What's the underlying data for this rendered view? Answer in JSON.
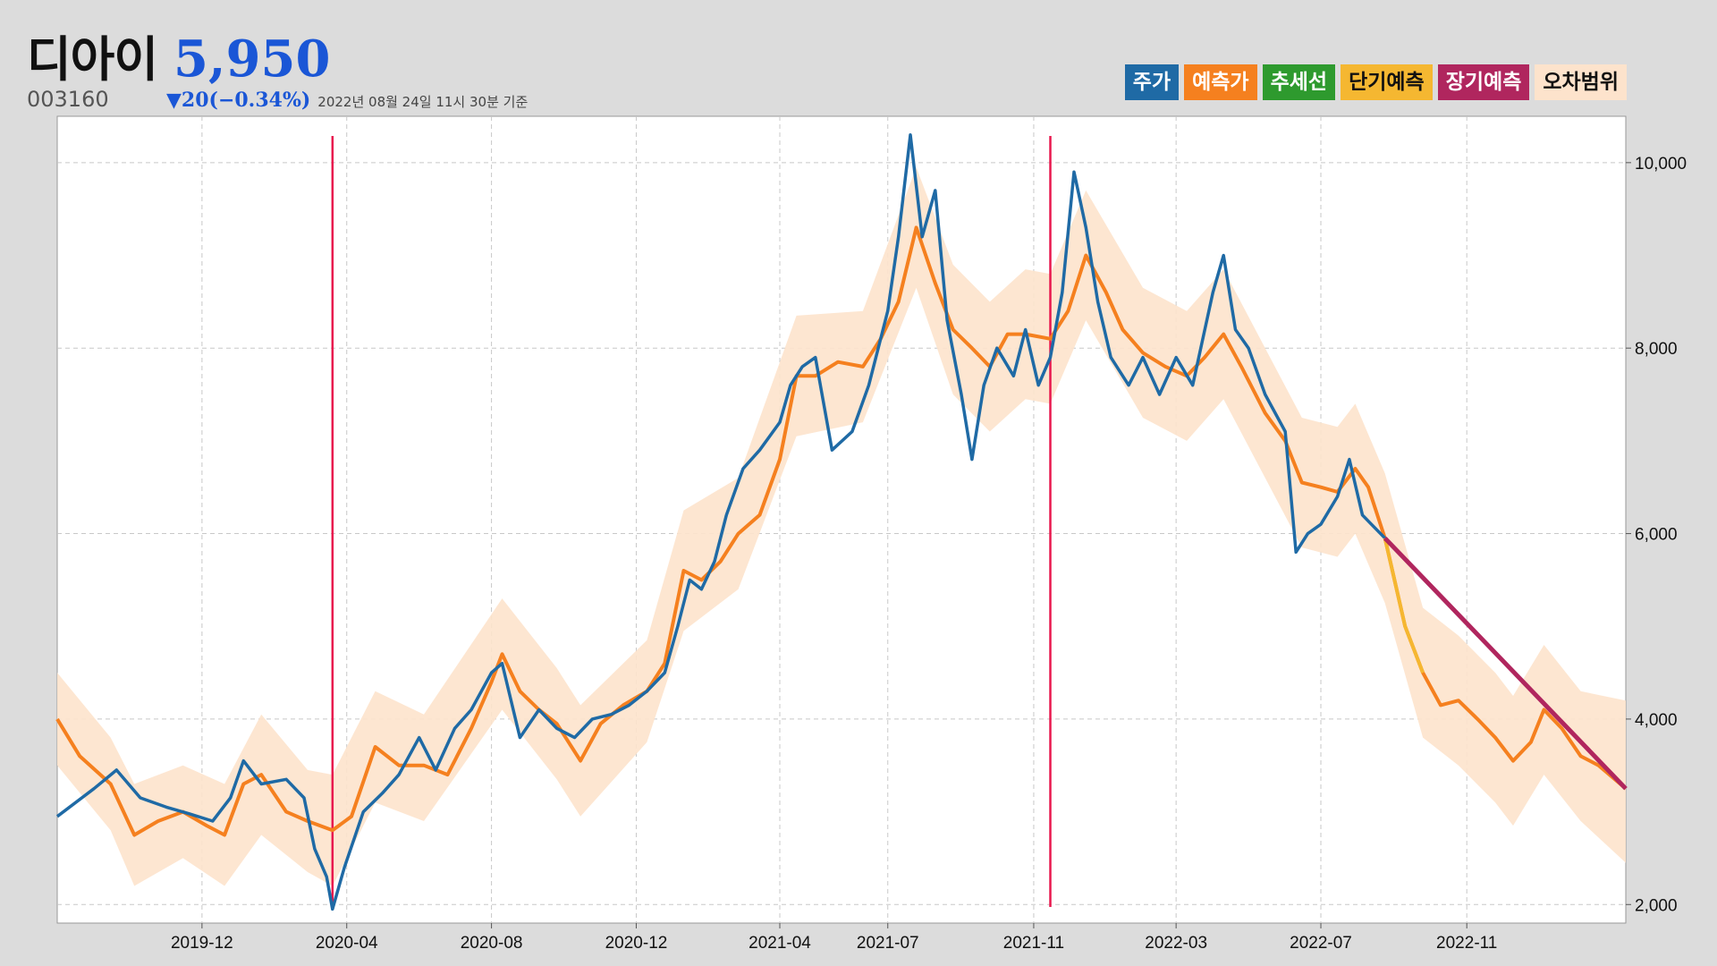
{
  "header": {
    "stock_name": "디아이",
    "price": "5,950",
    "code": "003160",
    "change": "▼20(−0.34%)",
    "timestamp": "2022년 08월 24일 11시 30분 기준"
  },
  "legend": [
    {
      "label": "주가",
      "bg": "#1f6aa5",
      "fg": "#ffffff"
    },
    {
      "label": "예측가",
      "bg": "#f5801f",
      "fg": "#ffffff"
    },
    {
      "label": "추세선",
      "bg": "#2e9a2e",
      "fg": "#ffffff"
    },
    {
      "label": "단기예측",
      "bg": "#f5b731",
      "fg": "#111111"
    },
    {
      "label": "장기예측",
      "bg": "#b0265e",
      "fg": "#ffffff"
    },
    {
      "label": "오차범위",
      "bg": "#fde3cc",
      "fg": "#111111"
    }
  ],
  "chart_data": {
    "type": "line",
    "x_ticks": [
      "2019-12",
      "2020-04",
      "2020-08",
      "2020-12",
      "2021-04",
      "2021-07",
      "2021-11",
      "2022-03",
      "2022-07",
      "2022-11"
    ],
    "y_ticks": [
      "2,000",
      "4,000",
      "6,000",
      "8,000",
      "10,000"
    ],
    "ylim": [
      1800,
      10500
    ],
    "xlim": [
      "2019-08-01",
      "2023-03-15"
    ],
    "grid": true,
    "colors": {
      "price": "#1f6aa5",
      "predicted": "#f5801f",
      "short_term": "#f5b731",
      "long_term": "#b0265e",
      "error_band": "#fde3cc",
      "markers": "#e8174e"
    },
    "markers": [
      "2020-03-20",
      "2021-11-15"
    ],
    "series": [
      {
        "name": "주가",
        "points": [
          [
            "2019-08-01",
            2950
          ],
          [
            "2019-09-01",
            3250
          ],
          [
            "2019-09-20",
            3450
          ],
          [
            "2019-10-10",
            3150
          ],
          [
            "2019-11-01",
            3050
          ],
          [
            "2019-11-20",
            2980
          ],
          [
            "2019-12-10",
            2900
          ],
          [
            "2019-12-25",
            3150
          ],
          [
            "2020-01-05",
            3550
          ],
          [
            "2020-01-20",
            3300
          ],
          [
            "2020-02-10",
            3350
          ],
          [
            "2020-02-25",
            3150
          ],
          [
            "2020-03-05",
            2600
          ],
          [
            "2020-03-15",
            2300
          ],
          [
            "2020-03-20",
            1950
          ],
          [
            "2020-03-30",
            2400
          ],
          [
            "2020-04-15",
            3000
          ],
          [
            "2020-05-01",
            3200
          ],
          [
            "2020-05-15",
            3400
          ],
          [
            "2020-06-01",
            3800
          ],
          [
            "2020-06-15",
            3450
          ],
          [
            "2020-07-01",
            3900
          ],
          [
            "2020-07-15",
            4100
          ],
          [
            "2020-08-01",
            4500
          ],
          [
            "2020-08-10",
            4600
          ],
          [
            "2020-08-25",
            3800
          ],
          [
            "2020-09-10",
            4100
          ],
          [
            "2020-09-25",
            3900
          ],
          [
            "2020-10-10",
            3800
          ],
          [
            "2020-10-25",
            4000
          ],
          [
            "2020-11-10",
            4050
          ],
          [
            "2020-11-25",
            4150
          ],
          [
            "2020-12-10",
            4300
          ],
          [
            "2020-12-25",
            4500
          ],
          [
            "2021-01-05",
            5000
          ],
          [
            "2021-01-15",
            5500
          ],
          [
            "2021-01-25",
            5400
          ],
          [
            "2021-02-05",
            5700
          ],
          [
            "2021-02-15",
            6200
          ],
          [
            "2021-03-01",
            6700
          ],
          [
            "2021-03-15",
            6900
          ],
          [
            "2021-04-01",
            7200
          ],
          [
            "2021-04-10",
            7600
          ],
          [
            "2021-04-20",
            7800
          ],
          [
            "2021-05-01",
            7900
          ],
          [
            "2021-05-15",
            6900
          ],
          [
            "2021-06-01",
            7100
          ],
          [
            "2021-06-15",
            7600
          ],
          [
            "2021-07-01",
            8400
          ],
          [
            "2021-07-10",
            9200
          ],
          [
            "2021-07-20",
            10300
          ],
          [
            "2021-07-30",
            9200
          ],
          [
            "2021-08-10",
            9700
          ],
          [
            "2021-08-20",
            8300
          ],
          [
            "2021-09-01",
            7500
          ],
          [
            "2021-09-10",
            6800
          ],
          [
            "2021-09-20",
            7600
          ],
          [
            "2021-10-01",
            8000
          ],
          [
            "2021-10-15",
            7700
          ],
          [
            "2021-10-25",
            8200
          ],
          [
            "2021-11-05",
            7600
          ],
          [
            "2021-11-15",
            7900
          ],
          [
            "2021-11-25",
            8600
          ],
          [
            "2021-12-05",
            9900
          ],
          [
            "2021-12-15",
            9300
          ],
          [
            "2021-12-25",
            8500
          ],
          [
            "2022-01-05",
            7900
          ],
          [
            "2022-01-20",
            7600
          ],
          [
            "2022-02-01",
            7900
          ],
          [
            "2022-02-15",
            7500
          ],
          [
            "2022-03-01",
            7900
          ],
          [
            "2022-03-15",
            7600
          ],
          [
            "2022-04-01",
            8600
          ],
          [
            "2022-04-10",
            9000
          ],
          [
            "2022-04-20",
            8200
          ],
          [
            "2022-05-01",
            8000
          ],
          [
            "2022-05-15",
            7500
          ],
          [
            "2022-06-01",
            7100
          ],
          [
            "2022-06-10",
            5800
          ],
          [
            "2022-06-20",
            6000
          ],
          [
            "2022-07-01",
            6100
          ],
          [
            "2022-07-15",
            6400
          ],
          [
            "2022-07-25",
            6800
          ],
          [
            "2022-08-05",
            6200
          ],
          [
            "2022-08-24",
            5950
          ]
        ]
      },
      {
        "name": "예측가",
        "points": [
          [
            "2019-08-01",
            4000
          ],
          [
            "2019-08-20",
            3600
          ],
          [
            "2019-09-15",
            3300
          ],
          [
            "2019-10-05",
            2750
          ],
          [
            "2019-10-25",
            2900
          ],
          [
            "2019-11-15",
            3000
          ],
          [
            "2019-12-05",
            2850
          ],
          [
            "2019-12-20",
            2750
          ],
          [
            "2020-01-05",
            3300
          ],
          [
            "2020-01-20",
            3400
          ],
          [
            "2020-02-10",
            3000
          ],
          [
            "2020-02-28",
            2900
          ],
          [
            "2020-03-20",
            2800
          ],
          [
            "2020-04-05",
            2950
          ],
          [
            "2020-04-25",
            3700
          ],
          [
            "2020-05-15",
            3500
          ],
          [
            "2020-06-05",
            3500
          ],
          [
            "2020-06-25",
            3400
          ],
          [
            "2020-07-15",
            3900
          ],
          [
            "2020-08-01",
            4400
          ],
          [
            "2020-08-10",
            4700
          ],
          [
            "2020-08-25",
            4300
          ],
          [
            "2020-09-10",
            4100
          ],
          [
            "2020-09-25",
            3950
          ],
          [
            "2020-10-15",
            3550
          ],
          [
            "2020-11-01",
            3950
          ],
          [
            "2020-11-20",
            4150
          ],
          [
            "2020-12-10",
            4300
          ],
          [
            "2020-12-25",
            4600
          ],
          [
            "2021-01-10",
            5600
          ],
          [
            "2021-01-25",
            5500
          ],
          [
            "2021-02-10",
            5700
          ],
          [
            "2021-02-25",
            6000
          ],
          [
            "2021-03-15",
            6200
          ],
          [
            "2021-04-01",
            6800
          ],
          [
            "2021-04-15",
            7700
          ],
          [
            "2021-05-01",
            7700
          ],
          [
            "2021-05-20",
            7850
          ],
          [
            "2021-06-10",
            7800
          ],
          [
            "2021-06-25",
            8100
          ],
          [
            "2021-07-10",
            8500
          ],
          [
            "2021-07-25",
            9300
          ],
          [
            "2021-08-10",
            8700
          ],
          [
            "2021-08-25",
            8200
          ],
          [
            "2021-09-10",
            8000
          ],
          [
            "2021-09-25",
            7800
          ],
          [
            "2021-10-10",
            8150
          ],
          [
            "2021-10-25",
            8150
          ],
          [
            "2021-11-15",
            8100
          ],
          [
            "2021-11-30",
            8400
          ],
          [
            "2021-12-15",
            9000
          ],
          [
            "2022-01-01",
            8600
          ],
          [
            "2022-01-15",
            8200
          ],
          [
            "2022-02-01",
            7950
          ],
          [
            "2022-02-20",
            7800
          ],
          [
            "2022-03-10",
            7700
          ],
          [
            "2022-03-25",
            7900
          ],
          [
            "2022-04-10",
            8150
          ],
          [
            "2022-04-25",
            7800
          ],
          [
            "2022-05-15",
            7300
          ],
          [
            "2022-06-01",
            7000
          ],
          [
            "2022-06-15",
            6550
          ],
          [
            "2022-07-01",
            6500
          ],
          [
            "2022-07-15",
            6450
          ],
          [
            "2022-07-30",
            6700
          ],
          [
            "2022-08-10",
            6500
          ],
          [
            "2022-08-24",
            5950
          ],
          [
            "2022-09-10",
            5000
          ],
          [
            "2022-09-25",
            4500
          ],
          [
            "2022-10-10",
            4150
          ],
          [
            "2022-10-25",
            4200
          ],
          [
            "2022-11-10",
            4000
          ],
          [
            "2022-11-25",
            3800
          ],
          [
            "2022-12-10",
            3550
          ],
          [
            "2022-12-25",
            3750
          ],
          [
            "2023-01-05",
            4100
          ],
          [
            "2023-01-20",
            3900
          ],
          [
            "2023-02-05",
            3600
          ],
          [
            "2023-02-20",
            3500
          ],
          [
            "2023-03-15",
            3250
          ]
        ]
      },
      {
        "name": "단기예측",
        "points": [
          [
            "2022-08-24",
            5950
          ],
          [
            "2022-09-10",
            5000
          ],
          [
            "2022-09-25",
            4500
          ]
        ]
      },
      {
        "name": "장기예측",
        "points": [
          [
            "2022-08-24",
            5950
          ],
          [
            "2023-03-15",
            3250
          ]
        ]
      },
      {
        "name": "오차범위",
        "upper": [
          [
            "2019-08-01",
            4500
          ],
          [
            "2019-09-15",
            3800
          ],
          [
            "2019-10-05",
            3300
          ],
          [
            "2019-11-15",
            3500
          ],
          [
            "2019-12-20",
            3300
          ],
          [
            "2020-01-20",
            4050
          ],
          [
            "2020-02-28",
            3450
          ],
          [
            "2020-03-20",
            3400
          ],
          [
            "2020-04-25",
            4300
          ],
          [
            "2020-06-05",
            4050
          ],
          [
            "2020-08-10",
            5300
          ],
          [
            "2020-09-25",
            4550
          ],
          [
            "2020-10-15",
            4150
          ],
          [
            "2020-12-10",
            4850
          ],
          [
            "2021-01-10",
            6250
          ],
          [
            "2021-02-25",
            6600
          ],
          [
            "2021-04-15",
            8350
          ],
          [
            "2021-06-10",
            8400
          ],
          [
            "2021-07-25",
            9950
          ],
          [
            "2021-08-25",
            8900
          ],
          [
            "2021-09-25",
            8500
          ],
          [
            "2021-10-25",
            8850
          ],
          [
            "2021-11-15",
            8800
          ],
          [
            "2021-12-15",
            9700
          ],
          [
            "2022-02-01",
            8650
          ],
          [
            "2022-03-10",
            8400
          ],
          [
            "2022-04-10",
            8850
          ],
          [
            "2022-05-15",
            8000
          ],
          [
            "2022-06-15",
            7250
          ],
          [
            "2022-07-15",
            7150
          ],
          [
            "2022-07-30",
            7400
          ],
          [
            "2022-08-24",
            6650
          ],
          [
            "2022-09-25",
            5200
          ],
          [
            "2022-10-25",
            4900
          ],
          [
            "2022-11-25",
            4500
          ],
          [
            "2022-12-10",
            4250
          ],
          [
            "2023-01-05",
            4800
          ],
          [
            "2023-02-05",
            4300
          ],
          [
            "2023-03-15",
            4200
          ]
        ],
        "lower": [
          [
            "2019-08-01",
            3500
          ],
          [
            "2019-09-15",
            2800
          ],
          [
            "2019-10-05",
            2200
          ],
          [
            "2019-11-15",
            2500
          ],
          [
            "2019-12-20",
            2200
          ],
          [
            "2020-01-20",
            2750
          ],
          [
            "2020-02-28",
            2350
          ],
          [
            "2020-03-20",
            2200
          ],
          [
            "2020-04-25",
            3100
          ],
          [
            "2020-06-05",
            2900
          ],
          [
            "2020-08-10",
            4100
          ],
          [
            "2020-09-25",
            3350
          ],
          [
            "2020-10-15",
            2950
          ],
          [
            "2020-12-10",
            3750
          ],
          [
            "2021-01-10",
            4950
          ],
          [
            "2021-02-25",
            5400
          ],
          [
            "2021-04-15",
            7050
          ],
          [
            "2021-06-10",
            7200
          ],
          [
            "2021-07-25",
            8650
          ],
          [
            "2021-08-25",
            7500
          ],
          [
            "2021-09-25",
            7100
          ],
          [
            "2021-10-25",
            7450
          ],
          [
            "2021-11-15",
            7400
          ],
          [
            "2021-12-15",
            8300
          ],
          [
            "2022-02-01",
            7250
          ],
          [
            "2022-03-10",
            7000
          ],
          [
            "2022-04-10",
            7450
          ],
          [
            "2022-05-15",
            6600
          ],
          [
            "2022-06-15",
            5850
          ],
          [
            "2022-07-15",
            5750
          ],
          [
            "2022-07-30",
            6000
          ],
          [
            "2022-08-24",
            5250
          ],
          [
            "2022-09-25",
            3800
          ],
          [
            "2022-10-25",
            3500
          ],
          [
            "2022-11-25",
            3100
          ],
          [
            "2022-12-10",
            2850
          ],
          [
            "2023-01-05",
            3400
          ],
          [
            "2023-02-05",
            2900
          ],
          [
            "2023-03-15",
            2450
          ]
        ]
      }
    ]
  }
}
